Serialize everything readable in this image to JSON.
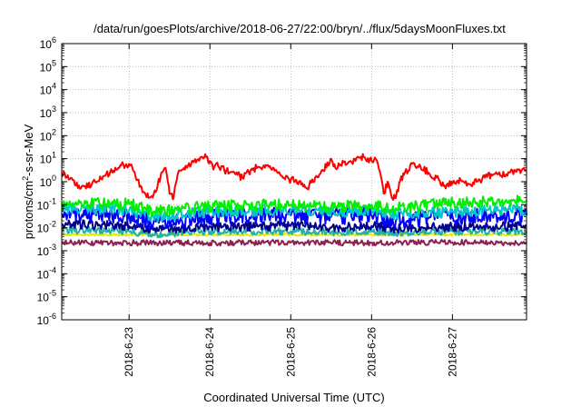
{
  "chart_data": {
    "type": "line",
    "title": "/data/run/goesPlots/archive/2018-06-27/22:00/bryn/../flux/5daysMoonFluxes.txt",
    "xlabel": "Coordinated Universal Time (UTC)",
    "ylabel": {
      "main": "protons/cm",
      "sup": "2",
      "rest": "-s-sr-MeV"
    },
    "yscale": "log",
    "ylim_exponents": [
      -6,
      6
    ],
    "ytick_base": "10",
    "ytick_exponents": [
      "-6",
      "-5",
      "-4",
      "-3",
      "-2",
      "-1",
      "0",
      "1",
      "2",
      "3",
      "4",
      "5",
      "6"
    ],
    "xlim_days": [
      "2018-06-22T04:00",
      "2018-06-27T22:00"
    ],
    "xticks": [
      {
        "label": "2018-6-23",
        "day": 1.0
      },
      {
        "label": "2018-6-24",
        "day": 2.0
      },
      {
        "label": "2018-6-25",
        "day": 3.0
      },
      {
        "label": "2018-6-26",
        "day": 4.0
      },
      {
        "label": "2018-6-27",
        "day": 5.0
      }
    ],
    "grid": true,
    "legend": "none",
    "note_x": "x values are days from 2018-06-22 00:00 UTC",
    "series": [
      {
        "color": "#ff0000",
        "noise": 0.15,
        "x": [
          0.17,
          0.3,
          0.4,
          0.6,
          0.8,
          0.9,
          1.0,
          1.05,
          1.1,
          1.2,
          1.25,
          1.3,
          1.35,
          1.4,
          1.45,
          1.5,
          1.55,
          1.6,
          1.7,
          1.8,
          1.95,
          2.0,
          2.05,
          2.1,
          2.2,
          2.3,
          2.4,
          2.5,
          2.6,
          2.7,
          2.8,
          2.9,
          3.0,
          3.1,
          3.2,
          3.3,
          3.4,
          3.5,
          3.55,
          3.6,
          3.65,
          3.7,
          3.8,
          3.9,
          4.0,
          4.05,
          4.1,
          4.15,
          4.2,
          4.25,
          4.3,
          4.35,
          4.4,
          4.5,
          4.6,
          4.7,
          4.8,
          4.9,
          5.0,
          5.1,
          5.2,
          5.3,
          5.4,
          5.5,
          5.6,
          5.7,
          5.8,
          5.92
        ],
        "y": [
          2.5,
          1.2,
          0.5,
          1.0,
          3.0,
          5.0,
          6.0,
          3.0,
          1.2,
          0.3,
          0.2,
          0.25,
          0.6,
          2.5,
          4.0,
          0.3,
          0.2,
          2.0,
          5.0,
          7.0,
          12.0,
          8.0,
          4.0,
          5.0,
          3.0,
          2.5,
          1.5,
          3.0,
          4.5,
          5.0,
          3.0,
          1.5,
          1.2,
          1.0,
          0.5,
          1.5,
          3.0,
          10.0,
          4.0,
          5.0,
          7.0,
          6.0,
          8.0,
          12.0,
          8.0,
          10.0,
          3.0,
          0.3,
          1.0,
          0.2,
          0.2,
          1.0,
          2.0,
          6.0,
          5.0,
          2.5,
          1.5,
          0.7,
          0.8,
          1.2,
          0.8,
          1.0,
          1.5,
          2.0,
          1.8,
          2.5,
          3.5,
          3.0
        ]
      },
      {
        "color": "#00ee00",
        "noise": 0.25,
        "x": [
          0.17,
          1.0,
          1.3,
          2.0,
          3.0,
          3.5,
          4.0,
          4.3,
          5.0,
          5.92
        ],
        "y": [
          0.12,
          0.11,
          0.05,
          0.09,
          0.1,
          0.08,
          0.1,
          0.07,
          0.12,
          0.15
        ]
      },
      {
        "color": "#00c8c8",
        "noise": 0.25,
        "x": [
          0.17,
          1.0,
          1.3,
          2.0,
          3.0,
          3.5,
          4.0,
          4.3,
          5.0,
          5.92
        ],
        "y": [
          0.07,
          0.06,
          0.03,
          0.05,
          0.06,
          0.05,
          0.06,
          0.04,
          0.05,
          0.06
        ]
      },
      {
        "color": "#0000ff",
        "noise": 0.35,
        "x": [
          0.17,
          1.0,
          1.3,
          2.0,
          3.0,
          3.5,
          4.0,
          4.3,
          5.0,
          5.92
        ],
        "y": [
          0.04,
          0.035,
          0.015,
          0.03,
          0.035,
          0.03,
          0.035,
          0.02,
          0.03,
          0.035
        ]
      },
      {
        "color": "#00008b",
        "noise": 0.2,
        "x": [
          0.17,
          1.0,
          1.3,
          2.0,
          3.0,
          3.5,
          4.0,
          4.3,
          5.0,
          5.92
        ],
        "y": [
          0.015,
          0.012,
          0.008,
          0.011,
          0.012,
          0.01,
          0.012,
          0.009,
          0.011,
          0.012
        ]
      },
      {
        "color": "#20b2aa",
        "noise": 0.15,
        "x": [
          0.17,
          1.0,
          1.3,
          2.0,
          3.0,
          3.5,
          4.0,
          4.3,
          5.0,
          5.92
        ],
        "y": [
          0.008,
          0.007,
          0.005,
          0.007,
          0.007,
          0.0065,
          0.007,
          0.006,
          0.007,
          0.007
        ]
      },
      {
        "color": "#e8e800",
        "noise": 0.05,
        "x": [
          0.17,
          1.0,
          2.0,
          3.0,
          4.0,
          5.0,
          5.92
        ],
        "y": [
          0.005,
          0.005,
          0.005,
          0.005,
          0.005,
          0.005,
          0.005
        ]
      },
      {
        "color": "#8b2252",
        "noise": 0.12,
        "x": [
          0.17,
          1.0,
          2.0,
          3.0,
          3.99,
          4.0,
          4.01,
          5.0,
          5.92
        ],
        "y": [
          0.0022,
          0.0022,
          0.0022,
          0.0023,
          0.0022,
          0.0002,
          0.0022,
          0.0023,
          0.0022
        ]
      }
    ]
  }
}
